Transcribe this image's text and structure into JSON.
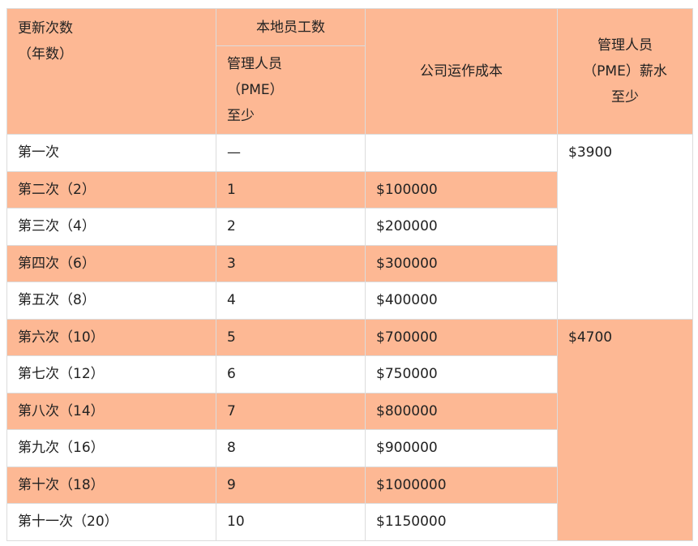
{
  "header": {
    "col1": [
      "更新次数",
      "（年数）"
    ],
    "group": "本地员工数",
    "col2": [
      "管理人员",
      "（PME）",
      "至少"
    ],
    "col3": "公司运作成本",
    "col4": [
      "管理人员",
      "（PME）薪水",
      "至少"
    ]
  },
  "rows": [
    {
      "label": "第一次",
      "staff": "—",
      "cost": ""
    },
    {
      "label": "第二次（2）",
      "staff": "1",
      "cost": "$100000"
    },
    {
      "label": "第三次（4）",
      "staff": "2",
      "cost": "$200000"
    },
    {
      "label": "第四次（6）",
      "staff": "3",
      "cost": "$300000"
    },
    {
      "label": "第五次（8）",
      "staff": "4",
      "cost": "$400000"
    },
    {
      "label": "第六次（10）",
      "staff": "5",
      "cost": "$700000"
    },
    {
      "label": "第七次（12）",
      "staff": "6",
      "cost": "$750000"
    },
    {
      "label": "第八次（14）",
      "staff": "7",
      "cost": "$800000"
    },
    {
      "label": "第九次（16）",
      "staff": "8",
      "cost": "$900000"
    },
    {
      "label": "第十次（18）",
      "staff": "9",
      "cost": "$1000000"
    },
    {
      "label": "第十一次（20）",
      "staff": "10",
      "cost": "$1150000"
    }
  ],
  "salaries": [
    "$3900",
    "$4700"
  ],
  "colors": {
    "accent": "#fdb894",
    "border": "#dcdcdc"
  }
}
